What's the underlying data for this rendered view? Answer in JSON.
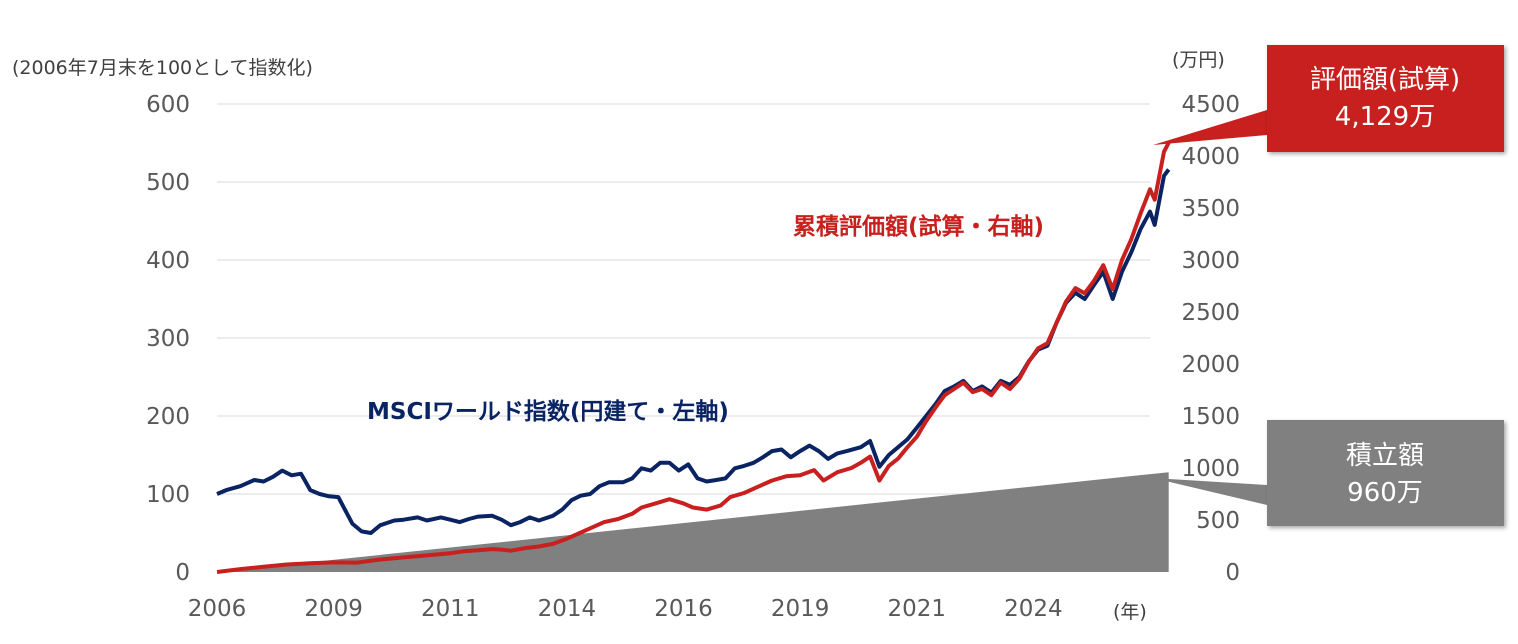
{
  "chart_data": {
    "type": "line",
    "left_axis_label": "(2006年7月末を100として指数化)",
    "right_axis_label": "(万円)",
    "x_unit_label": "(年)",
    "xlim": [
      2006,
      2026
    ],
    "left_ylim": [
      0,
      600
    ],
    "right_ylim": [
      0,
      4500
    ],
    "x_ticks": [
      "2006",
      "2009",
      "2011",
      "2014",
      "2016",
      "2019",
      "2021",
      "2024"
    ],
    "x_tick_positions": [
      2006,
      2008.5,
      2011,
      2013.5,
      2016,
      2018.5,
      2021,
      2023.5
    ],
    "left_ticks": [
      0,
      100,
      200,
      300,
      400,
      500,
      600
    ],
    "right_ticks": [
      0,
      500,
      1000,
      1500,
      2000,
      2500,
      3000,
      3500,
      4000,
      4500
    ],
    "grid": true,
    "series": [
      {
        "name": "MSCIワールド指数(円建て・左軸)",
        "axis": "left",
        "color": "#0a2463",
        "points": [
          [
            2006.0,
            100
          ],
          [
            2006.2,
            105
          ],
          [
            2006.5,
            110
          ],
          [
            2006.8,
            118
          ],
          [
            2007.0,
            116
          ],
          [
            2007.2,
            122
          ],
          [
            2007.4,
            130
          ],
          [
            2007.6,
            124
          ],
          [
            2007.8,
            126
          ],
          [
            2008.0,
            105
          ],
          [
            2008.2,
            100
          ],
          [
            2008.4,
            97
          ],
          [
            2008.6,
            96
          ],
          [
            2008.9,
            62
          ],
          [
            2009.1,
            52
          ],
          [
            2009.3,
            50
          ],
          [
            2009.5,
            60
          ],
          [
            2009.8,
            66
          ],
          [
            2010.0,
            67
          ],
          [
            2010.3,
            70
          ],
          [
            2010.5,
            66
          ],
          [
            2010.8,
            70
          ],
          [
            2011.0,
            67
          ],
          [
            2011.2,
            64
          ],
          [
            2011.4,
            68
          ],
          [
            2011.6,
            71
          ],
          [
            2011.9,
            72
          ],
          [
            2012.1,
            67
          ],
          [
            2012.3,
            60
          ],
          [
            2012.5,
            64
          ],
          [
            2012.7,
            70
          ],
          [
            2012.9,
            66
          ],
          [
            2013.2,
            72
          ],
          [
            2013.4,
            80
          ],
          [
            2013.6,
            92
          ],
          [
            2013.8,
            98
          ],
          [
            2014.0,
            100
          ],
          [
            2014.2,
            110
          ],
          [
            2014.4,
            115
          ],
          [
            2014.7,
            115
          ],
          [
            2014.9,
            120
          ],
          [
            2015.1,
            133
          ],
          [
            2015.3,
            130
          ],
          [
            2015.5,
            140
          ],
          [
            2015.7,
            140
          ],
          [
            2015.9,
            130
          ],
          [
            2016.1,
            138
          ],
          [
            2016.3,
            120
          ],
          [
            2016.5,
            116
          ],
          [
            2016.7,
            118
          ],
          [
            2016.9,
            120
          ],
          [
            2017.1,
            133
          ],
          [
            2017.3,
            136
          ],
          [
            2017.5,
            140
          ],
          [
            2017.7,
            147
          ],
          [
            2017.9,
            155
          ],
          [
            2018.1,
            157
          ],
          [
            2018.3,
            147
          ],
          [
            2018.5,
            155
          ],
          [
            2018.7,
            162
          ],
          [
            2018.9,
            155
          ],
          [
            2019.1,
            145
          ],
          [
            2019.3,
            152
          ],
          [
            2019.5,
            155
          ],
          [
            2019.8,
            160
          ],
          [
            2020.0,
            168
          ],
          [
            2020.2,
            135
          ],
          [
            2020.4,
            150
          ],
          [
            2020.6,
            160
          ],
          [
            2020.8,
            170
          ],
          [
            2021.0,
            185
          ],
          [
            2021.2,
            200
          ],
          [
            2021.4,
            215
          ],
          [
            2021.6,
            232
          ],
          [
            2021.8,
            238
          ],
          [
            2022.0,
            245
          ],
          [
            2022.2,
            232
          ],
          [
            2022.4,
            238
          ],
          [
            2022.6,
            230
          ],
          [
            2022.8,
            245
          ],
          [
            2023.0,
            240
          ],
          [
            2023.2,
            250
          ],
          [
            2023.4,
            270
          ],
          [
            2023.6,
            285
          ],
          [
            2023.8,
            290
          ],
          [
            2024.0,
            320
          ],
          [
            2024.2,
            345
          ],
          [
            2024.4,
            358
          ],
          [
            2024.6,
            350
          ],
          [
            2024.8,
            368
          ],
          [
            2025.0,
            385
          ],
          [
            2025.2,
            350
          ],
          [
            2025.4,
            385
          ],
          [
            2025.6,
            410
          ],
          [
            2025.8,
            440
          ],
          [
            2026.0,
            462
          ],
          [
            2026.1,
            445
          ],
          [
            2026.3,
            508
          ],
          [
            2026.4,
            516
          ]
        ]
      },
      {
        "name": "累積評価額(試算・右軸)",
        "axis": "right",
        "color": "#c8201e",
        "points": [
          [
            2006.0,
            0
          ],
          [
            2006.5,
            28
          ],
          [
            2007.0,
            50
          ],
          [
            2007.5,
            72
          ],
          [
            2008.0,
            85
          ],
          [
            2008.5,
            92
          ],
          [
            2009.0,
            90
          ],
          [
            2009.5,
            120
          ],
          [
            2010.0,
            140
          ],
          [
            2010.5,
            160
          ],
          [
            2011.0,
            180
          ],
          [
            2011.3,
            200
          ],
          [
            2011.6,
            210
          ],
          [
            2011.9,
            220
          ],
          [
            2012.1,
            215
          ],
          [
            2012.3,
            205
          ],
          [
            2012.6,
            230
          ],
          [
            2012.9,
            245
          ],
          [
            2013.2,
            270
          ],
          [
            2013.5,
            320
          ],
          [
            2013.8,
            380
          ],
          [
            2014.0,
            420
          ],
          [
            2014.3,
            480
          ],
          [
            2014.6,
            510
          ],
          [
            2014.9,
            560
          ],
          [
            2015.1,
            620
          ],
          [
            2015.4,
            660
          ],
          [
            2015.7,
            700
          ],
          [
            2016.0,
            660
          ],
          [
            2016.2,
            620
          ],
          [
            2016.5,
            600
          ],
          [
            2016.8,
            640
          ],
          [
            2017.0,
            720
          ],
          [
            2017.3,
            760
          ],
          [
            2017.6,
            820
          ],
          [
            2017.9,
            880
          ],
          [
            2018.2,
            920
          ],
          [
            2018.5,
            930
          ],
          [
            2018.8,
            980
          ],
          [
            2019.0,
            880
          ],
          [
            2019.3,
            960
          ],
          [
            2019.6,
            1000
          ],
          [
            2019.8,
            1050
          ],
          [
            2020.0,
            1110
          ],
          [
            2020.2,
            880
          ],
          [
            2020.4,
            1020
          ],
          [
            2020.6,
            1090
          ],
          [
            2020.8,
            1200
          ],
          [
            2021.0,
            1300
          ],
          [
            2021.2,
            1450
          ],
          [
            2021.4,
            1580
          ],
          [
            2021.6,
            1700
          ],
          [
            2021.8,
            1760
          ],
          [
            2022.0,
            1820
          ],
          [
            2022.2,
            1730
          ],
          [
            2022.4,
            1760
          ],
          [
            2022.6,
            1700
          ],
          [
            2022.8,
            1820
          ],
          [
            2023.0,
            1760
          ],
          [
            2023.2,
            1860
          ],
          [
            2023.4,
            2020
          ],
          [
            2023.6,
            2150
          ],
          [
            2023.8,
            2200
          ],
          [
            2024.0,
            2400
          ],
          [
            2024.2,
            2600
          ],
          [
            2024.4,
            2730
          ],
          [
            2024.6,
            2680
          ],
          [
            2024.8,
            2800
          ],
          [
            2025.0,
            2950
          ],
          [
            2025.2,
            2720
          ],
          [
            2025.4,
            3000
          ],
          [
            2025.6,
            3200
          ],
          [
            2025.8,
            3450
          ],
          [
            2026.0,
            3680
          ],
          [
            2026.1,
            3580
          ],
          [
            2026.3,
            4040
          ],
          [
            2026.4,
            4129
          ]
        ]
      },
      {
        "name": "積立額",
        "axis": "right",
        "type": "area",
        "color": "#808080",
        "points": [
          [
            2006.0,
            0
          ],
          [
            2026.4,
            960
          ]
        ]
      }
    ],
    "annotations": [
      {
        "label": "評価額(試算)",
        "value": "4,129万",
        "color": "#c8201e"
      },
      {
        "label": "積立額",
        "value": "960万",
        "color": "#808080"
      }
    ]
  }
}
